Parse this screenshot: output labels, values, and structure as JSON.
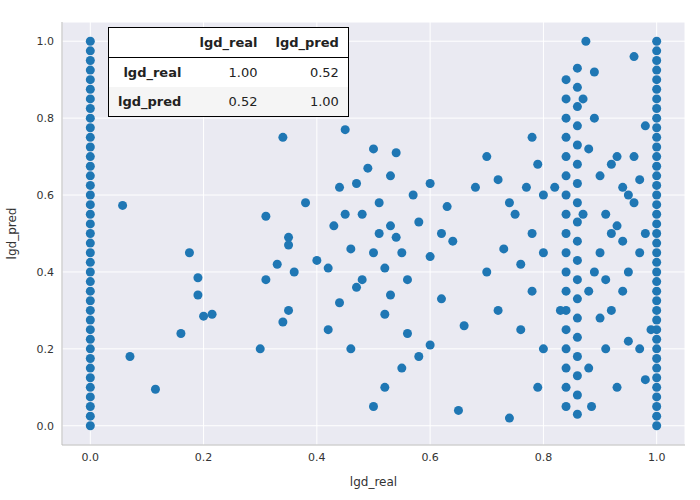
{
  "chart_data": {
    "type": "scatter",
    "x_label": "lgd_real",
    "y_label": "lgd_pred",
    "color": "#1f77b4",
    "grid": true,
    "marker": "circle",
    "xlim": [
      -0.05,
      1.05
    ],
    "ylim": [
      -0.05,
      1.05
    ],
    "xticks": [
      {
        "value": 0,
        "label": "0.0"
      },
      {
        "value": 0.2,
        "label": "0.2"
      },
      {
        "value": 0.4,
        "label": "0.4"
      },
      {
        "value": 0.6,
        "label": "0.6"
      },
      {
        "value": 0.8,
        "label": "0.8"
      },
      {
        "value": 1,
        "label": "1.0"
      }
    ],
    "yticks": [
      {
        "value": 0,
        "label": "0.0"
      },
      {
        "value": 0.2,
        "label": "0.2"
      },
      {
        "value": 0.4,
        "label": "0.4"
      },
      {
        "value": 0.6,
        "label": "0.6"
      },
      {
        "value": 0.8,
        "label": "0.8"
      },
      {
        "value": 1,
        "label": "1.0"
      }
    ],
    "x": [
      0,
      0,
      0,
      0,
      0,
      0,
      0,
      0,
      0,
      0,
      0,
      0,
      0,
      0,
      0,
      0,
      0,
      0,
      0,
      0,
      0,
      0,
      0,
      0,
      0,
      0,
      0,
      0,
      0,
      0,
      0,
      0,
      0,
      0,
      0,
      0,
      0,
      0,
      0,
      0,
      0,
      1,
      1,
      1,
      1,
      1,
      1,
      1,
      1,
      1,
      1,
      1,
      1,
      1,
      1,
      1,
      1,
      1,
      1,
      1,
      1,
      1,
      1,
      1,
      1,
      1,
      1,
      1,
      1,
      1,
      1,
      1,
      1,
      1,
      1,
      1,
      1,
      1,
      1,
      1,
      1,
      1,
      0.057,
      0.07,
      0.115,
      0.16,
      0.175,
      0.19,
      0.19,
      0.2,
      0.215,
      0.3,
      0.31,
      0.31,
      0.33,
      0.35,
      0.35,
      0.36,
      0.34,
      0.35,
      0.38,
      0.34,
      0.4,
      0.42,
      0.43,
      0.44,
      0.45,
      0.46,
      0.47,
      0.48,
      0.49,
      0.5,
      0.51,
      0.52,
      0.52,
      0.53,
      0.53,
      0.54,
      0.55,
      0.55,
      0.56,
      0.57,
      0.58,
      0.6,
      0.6,
      0.62,
      0.63,
      0.64,
      0.65,
      0.66,
      0.68,
      0.46,
      0.5,
      0.52,
      0.54,
      0.48,
      0.5,
      0.51,
      0.53,
      0.56,
      0.45,
      0.42,
      0.44,
      0.47,
      0.58,
      0.6,
      0.62,
      0.7,
      0.72,
      0.73,
      0.74,
      0.75,
      0.76,
      0.77,
      0.78,
      0.78,
      0.79,
      0.79,
      0.8,
      0.8,
      0.8,
      0.78,
      0.76,
      0.74,
      0.72,
      0.7,
      0.86,
      0.86,
      0.86,
      0.86,
      0.86,
      0.86,
      0.86,
      0.86,
      0.86,
      0.86,
      0.86,
      0.86,
      0.86,
      0.86,
      0.86,
      0.86,
      0.86,
      0.86,
      0.86,
      0.84,
      0.84,
      0.84,
      0.84,
      0.84,
      0.84,
      0.84,
      0.84,
      0.84,
      0.84,
      0.84,
      0.84,
      0.84,
      0.84,
      0.84,
      0.84,
      0.84,
      0.84,
      0.82,
      0.83,
      0.87,
      0.88,
      0.89,
      0.9,
      0.91,
      0.92,
      0.93,
      0.94,
      0.95,
      0.96,
      0.97,
      0.98,
      0.99,
      0.88,
      0.89,
      0.9,
      0.91,
      0.92,
      0.93,
      0.94,
      0.95,
      0.96,
      0.97,
      0.98,
      0.87,
      0.88,
      0.9,
      0.92,
      0.94,
      0.96,
      0.98,
      0.89,
      0.91,
      0.93,
      0.95,
      0.97,
      0.875,
      0.885
    ],
    "values": [
      0,
      0.025,
      0.05,
      0.075,
      0.1,
      0.125,
      0.15,
      0.175,
      0.2,
      0.225,
      0.25,
      0.275,
      0.3,
      0.325,
      0.35,
      0.375,
      0.4,
      0.425,
      0.45,
      0.475,
      0.5,
      0.525,
      0.55,
      0.575,
      0.6,
      0.625,
      0.65,
      0.675,
      0.7,
      0.725,
      0.75,
      0.775,
      0.8,
      0.825,
      0.85,
      0.875,
      0.9,
      0.925,
      0.95,
      0.975,
      1,
      0,
      0.025,
      0.05,
      0.075,
      0.1,
      0.125,
      0.15,
      0.175,
      0.2,
      0.225,
      0.25,
      0.275,
      0.3,
      0.325,
      0.35,
      0.375,
      0.4,
      0.425,
      0.45,
      0.475,
      0.5,
      0.525,
      0.55,
      0.575,
      0.6,
      0.625,
      0.65,
      0.675,
      0.7,
      0.725,
      0.75,
      0.775,
      0.8,
      0.825,
      0.85,
      0.875,
      0.9,
      0.925,
      0.95,
      0.975,
      1,
      0.573,
      0.18,
      0.095,
      0.24,
      0.45,
      0.385,
      0.34,
      0.285,
      0.29,
      0.2,
      0.545,
      0.38,
      0.42,
      0.49,
      0.47,
      0.4,
      0.27,
      0.3,
      0.58,
      0.75,
      0.43,
      0.25,
      0.52,
      0.62,
      0.77,
      0.46,
      0.36,
      0.55,
      0.67,
      0.72,
      0.58,
      0.41,
      0.29,
      0.52,
      0.65,
      0.49,
      0.45,
      0.15,
      0.38,
      0.6,
      0.53,
      0.21,
      0.44,
      0.33,
      0.57,
      0.48,
      0.04,
      0.26,
      0.62,
      0.2,
      0.05,
      0.1,
      0.71,
      0.38,
      0.45,
      0.5,
      0.34,
      0.24,
      0.55,
      0.41,
      0.32,
      0.63,
      0.18,
      0.63,
      0.5,
      0.4,
      0.3,
      0.46,
      0.02,
      0.55,
      0.25,
      0.62,
      0.35,
      0.5,
      0.1,
      0.68,
      0.45,
      0.6,
      0.2,
      0.75,
      0.42,
      0.58,
      0.64,
      0.7,
      0.03,
      0.08,
      0.13,
      0.18,
      0.23,
      0.28,
      0.33,
      0.38,
      0.43,
      0.48,
      0.53,
      0.58,
      0.63,
      0.68,
      0.73,
      0.78,
      0.83,
      0.88,
      0.93,
      0.05,
      0.1,
      0.15,
      0.2,
      0.25,
      0.3,
      0.35,
      0.4,
      0.45,
      0.5,
      0.55,
      0.6,
      0.65,
      0.7,
      0.75,
      0.8,
      0.85,
      0.9,
      0.62,
      0.3,
      0.55,
      0.72,
      0.4,
      0.65,
      0.2,
      0.5,
      0.7,
      0.35,
      0.6,
      0.96,
      0.45,
      0.78,
      0.25,
      0.15,
      0.8,
      0.45,
      0.55,
      0.3,
      0.1,
      0.62,
      0.4,
      0.7,
      0.2,
      0.5,
      0.85,
      0.35,
      0.28,
      0.68,
      0.48,
      0.58,
      0.12,
      0.92,
      0.38,
      0.52,
      0.22,
      0.64,
      1.0,
      0.05
    ],
    "table": {
      "columns": [
        "lgd_real",
        "lgd_pred"
      ],
      "rows": [
        {
          "label": "lgd_real",
          "values": [
            "1.00",
            "0.52"
          ]
        },
        {
          "label": "lgd_pred",
          "values": [
            "0.52",
            "1.00"
          ]
        }
      ]
    }
  }
}
